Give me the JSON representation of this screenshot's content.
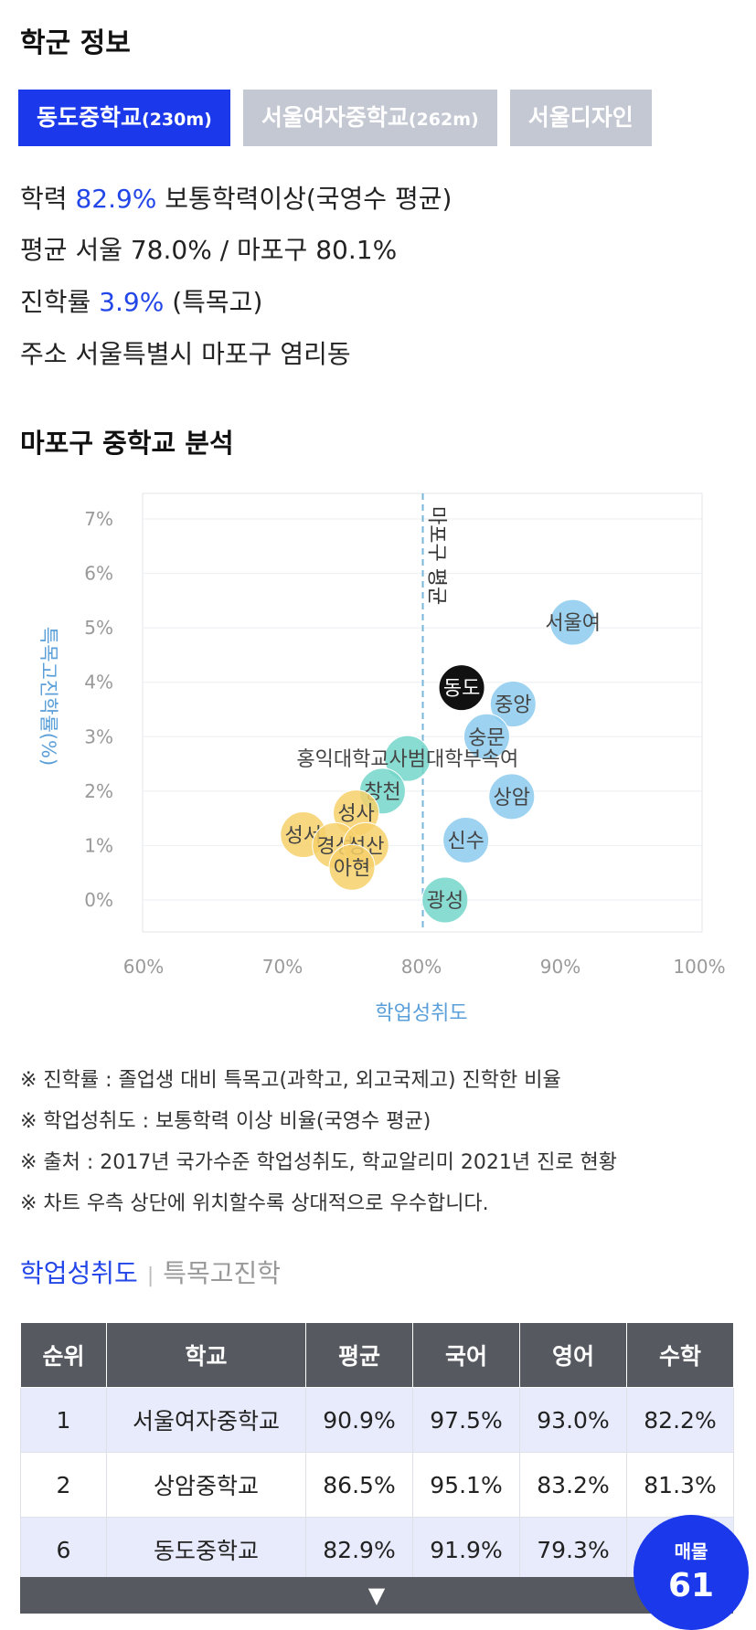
{
  "header": {
    "title": "학군 정보"
  },
  "school_tabs": [
    {
      "name": "동도중학교",
      "dist": "(230m)",
      "active": true
    },
    {
      "name": "서울여자중학교",
      "dist": "(262m)",
      "active": false
    },
    {
      "name": "서울디자인",
      "dist": "",
      "active": false
    }
  ],
  "info": {
    "academic": {
      "label": "학력",
      "value": "82.9%",
      "desc": "보통학력이상(국영수 평균)"
    },
    "average": {
      "label": "평균",
      "text": "서울 78.0% / 마포구 80.1%"
    },
    "advance": {
      "label": "진학률",
      "value": "3.9%",
      "desc": "(특목고)"
    },
    "address": {
      "label": "주소",
      "text": "서울특별시 마포구 염리동"
    }
  },
  "analysis_title": "마포구 중학교 분석",
  "chart_data": {
    "type": "scatter",
    "xlabel": "학업성취도",
    "ylabel": "특목고진학률(%)",
    "xlim": [
      60,
      100
    ],
    "ylim": [
      0,
      7
    ],
    "x_ticks": [
      "60%",
      "70%",
      "80%",
      "90%",
      "100%"
    ],
    "y_ticks": [
      "0%",
      "1%",
      "2%",
      "3%",
      "4%",
      "5%",
      "6%",
      "7%"
    ],
    "avg_line": {
      "x": 80.1,
      "label": "마포구 평균"
    },
    "colors": {
      "blue": "#8ccbef",
      "teal": "#74d6c9",
      "yellow": "#f6d06a",
      "black": "#111111",
      "avg": "#7ab6db"
    },
    "points": [
      {
        "label": "서울여",
        "x": 90.9,
        "y": 5.1,
        "color": "blue"
      },
      {
        "label": "중앙",
        "x": 86.6,
        "y": 3.6,
        "color": "blue"
      },
      {
        "label": "숭문",
        "x": 84.7,
        "y": 3.0,
        "color": "blue"
      },
      {
        "label": "상암",
        "x": 86.5,
        "y": 1.9,
        "color": "blue"
      },
      {
        "label": "신수",
        "x": 83.2,
        "y": 1.1,
        "color": "blue"
      },
      {
        "label": "홍익대학교사범대학부속여",
        "x": 79.0,
        "y": 2.6,
        "color": "teal"
      },
      {
        "label": "창천",
        "x": 77.2,
        "y": 2.0,
        "color": "teal"
      },
      {
        "label": "광성",
        "x": 81.7,
        "y": 0.0,
        "color": "teal"
      },
      {
        "label": "성사",
        "x": 75.3,
        "y": 1.6,
        "color": "yellow"
      },
      {
        "label": "성서",
        "x": 71.5,
        "y": 1.2,
        "color": "yellow"
      },
      {
        "label": "경성",
        "x": 73.8,
        "y": 1.0,
        "color": "yellow"
      },
      {
        "label": "성산",
        "x": 76.0,
        "y": 1.0,
        "color": "yellow"
      },
      {
        "label": "아현",
        "x": 75.0,
        "y": 0.6,
        "color": "yellow"
      },
      {
        "label": "동도",
        "x": 82.9,
        "y": 3.9,
        "color": "black"
      }
    ]
  },
  "notes": [
    "※ 진학률 : 졸업생 대비 특목고(과학고, 외고국제고) 진학한 비율",
    "※ 학업성취도 : 보통학력 이상 비율(국영수 평균)",
    "※ 출처 : 2017년 국가수준 학업성취도, 학교알리미 2021년 진로 현황",
    "※ 차트 우측 상단에 위치할수록 상대적으로 우수합니다."
  ],
  "subtabs": {
    "active": "학업성취도",
    "inactive": "특목고진학"
  },
  "table": {
    "headers": [
      "순위",
      "학교",
      "평균",
      "국어",
      "영어",
      "수학"
    ],
    "rows": [
      [
        "1",
        "서울여자중학교",
        "90.9%",
        "97.5%",
        "93.0%",
        "82.2%"
      ],
      [
        "2",
        "상암중학교",
        "86.5%",
        "95.1%",
        "83.2%",
        "81.3%"
      ],
      [
        "6",
        "동도중학교",
        "82.9%",
        "91.9%",
        "79.3%",
        ""
      ]
    ],
    "more_icon": "▼"
  },
  "badge": {
    "label": "매물",
    "count": "61"
  }
}
